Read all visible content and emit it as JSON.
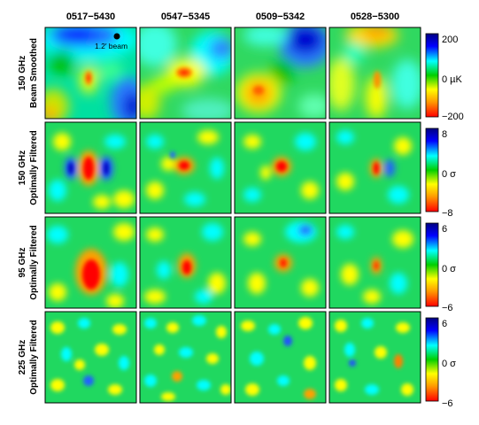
{
  "figure": {
    "columns": [
      "0517−5430",
      "0547−5345",
      "0509−5342",
      "0528−5300"
    ],
    "rows": [
      {
        "label_top": "150 GHz",
        "label_bottom": "Beam Smoothed",
        "colorbar": {
          "max": "200",
          "mid": "0 µK",
          "min": "−200"
        }
      },
      {
        "label_top": "150 GHz",
        "label_bottom": "Optimally Filtered",
        "colorbar": {
          "max": "8",
          "mid": "0 σ",
          "min": "−8"
        }
      },
      {
        "label_top": "95 GHz",
        "label_bottom": "Optimally Filtered",
        "colorbar": {
          "max": "6",
          "mid": "0 σ",
          "min": "−6"
        }
      },
      {
        "label_top": "225 GHz",
        "label_bottom": "Optimally Filtered",
        "colorbar": {
          "max": "6",
          "mid": "0 σ",
          "min": "−6"
        }
      }
    ],
    "beam_annotation": "1.2′ beam",
    "colormap": [
      "#ff0000",
      "#ffa000",
      "#ffff00",
      "#00d000",
      "#00ffff",
      "#0000ff",
      "#000080"
    ]
  }
}
